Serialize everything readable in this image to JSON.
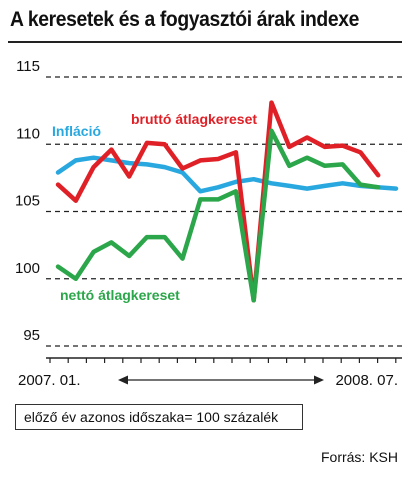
{
  "page": {
    "title": "A keresetek és a fogyasztói árak indexe",
    "note": "előző év azonos időszaka= 100 százalék",
    "source": "Forrás: KSH"
  },
  "chart_data": {
    "type": "line",
    "ylim": [
      95,
      115
    ],
    "yticks": [
      95,
      100,
      105,
      110,
      115
    ],
    "grid": true,
    "x": [
      1,
      2,
      3,
      4,
      5,
      6,
      7,
      8,
      9,
      10,
      11,
      12,
      13,
      14,
      15,
      16,
      17,
      18,
      19,
      20
    ],
    "x_range_labels": [
      "2007. 01.",
      "2008. 07."
    ],
    "series": [
      {
        "name": "Infláció",
        "color": "#29a8e0",
        "values": [
          107.9,
          108.8,
          109.0,
          108.8,
          108.6,
          108.5,
          108.3,
          107.9,
          106.5,
          106.8,
          107.2,
          107.4,
          107.1,
          106.9,
          106.7,
          106.9,
          107.1,
          106.9,
          106.8,
          106.7
        ]
      },
      {
        "name": "bruttó átlagkereset",
        "color": "#e02027",
        "values": [
          107.0,
          105.8,
          108.3,
          109.6,
          107.6,
          110.1,
          110.0,
          108.2,
          108.8,
          108.9,
          109.4,
          98.4,
          113.1,
          109.8,
          110.5,
          109.8,
          109.9,
          109.4,
          107.7,
          null
        ]
      },
      {
        "name": "nettó átlagkereset",
        "color": "#2ca64a",
        "values": [
          100.9,
          100.0,
          102.0,
          102.7,
          101.7,
          103.1,
          103.1,
          101.5,
          105.9,
          105.9,
          106.5,
          98.4,
          111.0,
          108.4,
          109.0,
          108.4,
          108.5,
          107.0,
          106.8,
          null
        ]
      }
    ],
    "arrow": "both"
  }
}
